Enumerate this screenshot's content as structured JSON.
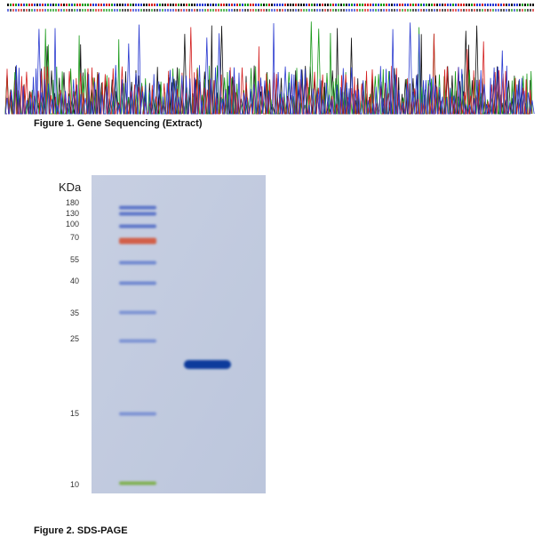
{
  "figure1": {
    "caption": "Figure 1. Gene Sequencing (Extract)"
  },
  "figure2": {
    "caption": "Figure 2. SDS-PAGE",
    "unit_label": "KDa",
    "ladder_labels": [
      180,
      130,
      100,
      70,
      55,
      40,
      35,
      25,
      15,
      10
    ]
  }
}
